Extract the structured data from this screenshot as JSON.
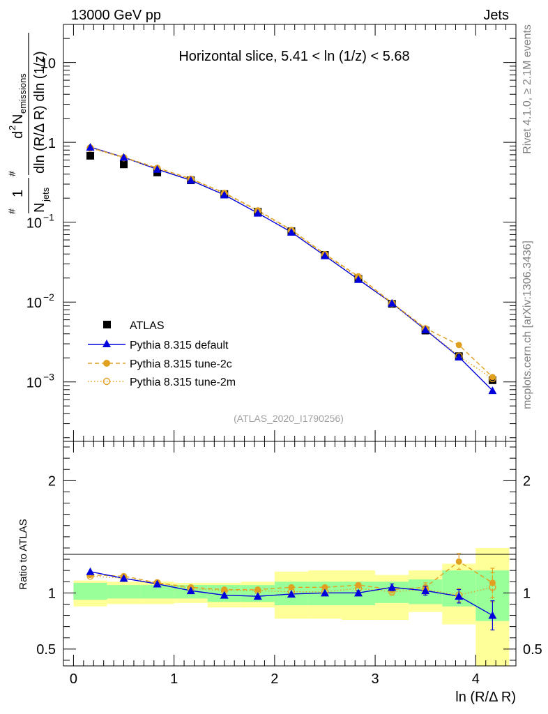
{
  "header": {
    "left": "13000 GeV pp",
    "right": "Jets"
  },
  "side": {
    "rivet": "Rivet 4.1.0, ≥ 2.1M events",
    "mcplots": "mcplots.cern.ch [arXiv:1306.3436]"
  },
  "colors": {
    "atlas": "#000000",
    "default": "#0000dd",
    "tune2c": "#e0a020",
    "tune2m": "#e0a020",
    "band_green": "#99ff99",
    "band_yellow": "#ffff99"
  },
  "chart_data": [
    {
      "type": "scatter",
      "title": "Horizontal slice, 5.41 < ln (1/z) < 5.68",
      "analysis_tag": "(ATLAS_2020_I1790256)",
      "yscale": "log",
      "ylim": [
        0.00018,
        30
      ],
      "xlim": [
        -0.1,
        4.4
      ],
      "ylabel_parts": {
        "frac1_num": "1",
        "frac1_den": "N",
        "frac1_den_sub": "jets",
        "frac2_num": "d",
        "frac2_num_sup": "2",
        "frac2_num_main": "N",
        "frac2_num_sub": "emissions",
        "frac2_den": "dln (R/Δ R) dln (1/z)",
        "hash": "#"
      },
      "y_ticks": [
        {
          "v": 10,
          "label": "10"
        },
        {
          "v": 1,
          "label": "1"
        },
        {
          "v": 0.1,
          "label": "10",
          "exp": "−1"
        },
        {
          "v": 0.01,
          "label": "10",
          "exp": "−2"
        },
        {
          "v": 0.001,
          "label": "10",
          "exp": "−3"
        }
      ],
      "x": [
        0.167,
        0.5,
        0.833,
        1.167,
        1.5,
        1.833,
        2.167,
        2.5,
        2.833,
        3.167,
        3.5,
        3.833,
        4.167
      ],
      "series": [
        {
          "name": "ATLAS",
          "marker": "square",
          "values": [
            0.68,
            0.53,
            0.42,
            0.335,
            0.225,
            0.135,
            0.077,
            0.039,
            0.0195,
            0.0095,
            0.0044,
            0.0021,
            0.00105
          ]
        },
        {
          "name": "Pythia 8.315 default",
          "marker": "triangle",
          "line": "solid",
          "values": [
            0.87,
            0.65,
            0.46,
            0.335,
            0.22,
            0.13,
            0.075,
            0.038,
            0.0192,
            0.0097,
            0.0045,
            0.00205,
            0.00078
          ]
        },
        {
          "name": "Pythia 8.315 tune-2c",
          "marker": "circle",
          "line": "dashed",
          "values": [
            0.86,
            0.65,
            0.48,
            0.35,
            0.233,
            0.141,
            0.08,
            0.04,
            0.021,
            0.0098,
            0.0047,
            0.0029,
            0.00115
          ]
        },
        {
          "name": "Pythia 8.315 tune-2m",
          "marker": "open-circle",
          "line": "dotted",
          "values": [
            0.85,
            0.64,
            0.47,
            0.345,
            0.228,
            0.138,
            0.078,
            0.039,
            0.0203,
            0.0096,
            0.0046,
            0.0021,
            0.0011
          ]
        }
      ]
    },
    {
      "type": "line",
      "ylabel": "Ratio to ATLAS",
      "xlabel": "ln (R/Δ R)",
      "ylim": [
        0.35,
        2.35
      ],
      "xlim": [
        -0.1,
        4.4
      ],
      "x_ticks": [
        0,
        1,
        2,
        3,
        4
      ],
      "y_ticks_left": [
        {
          "v": 2,
          "label": "2"
        },
        {
          "v": 1,
          "label": "1"
        },
        {
          "v": 0.5,
          "label": "0.5"
        }
      ],
      "y_ticks_right": [
        {
          "v": 2,
          "label": "2"
        },
        {
          "v": 1,
          "label": "1"
        },
        {
          "v": 0.5,
          "label": "0.5"
        }
      ],
      "bins": [
        [
          0,
          0.333
        ],
        [
          0.333,
          0.667
        ],
        [
          0.667,
          1.0
        ],
        [
          1.0,
          1.333
        ],
        [
          1.333,
          1.667
        ],
        [
          1.667,
          2.0
        ],
        [
          2.0,
          2.333
        ],
        [
          2.333,
          2.667
        ],
        [
          2.667,
          3.0
        ],
        [
          3.0,
          3.333
        ],
        [
          3.333,
          3.667
        ],
        [
          3.667,
          4.0
        ],
        [
          4.0,
          4.333
        ]
      ],
      "band_green": [
        [
          0.94,
          1.09
        ],
        [
          0.95,
          1.07
        ],
        [
          0.95,
          1.07
        ],
        [
          0.95,
          1.07
        ],
        [
          0.92,
          1.07
        ],
        [
          0.92,
          1.07
        ],
        [
          0.89,
          1.1
        ],
        [
          0.89,
          1.1
        ],
        [
          0.89,
          1.1
        ],
        [
          0.91,
          1.1
        ],
        [
          0.9,
          1.12
        ],
        [
          0.88,
          1.2
        ],
        [
          0.75,
          1.2
        ]
      ],
      "band_yellow": [
        [
          0.88,
          1.11
        ],
        [
          0.9,
          1.1
        ],
        [
          0.9,
          1.1
        ],
        [
          0.91,
          1.09
        ],
        [
          0.87,
          1.09
        ],
        [
          0.87,
          1.1
        ],
        [
          0.77,
          1.19
        ],
        [
          0.77,
          1.2
        ],
        [
          0.76,
          1.2
        ],
        [
          0.76,
          1.16
        ],
        [
          0.83,
          1.2
        ],
        [
          0.72,
          1.26
        ],
        [
          0.35,
          1.4
        ]
      ],
      "series": [
        {
          "name": "Pythia 8.315 default",
          "values": [
            1.19,
            1.13,
            1.08,
            1.02,
            0.98,
            0.97,
            0.99,
            1.0,
            1.0,
            1.05,
            1.02,
            0.97,
            0.8
          ],
          "err": [
            0.01,
            0.01,
            0.01,
            0.01,
            0.01,
            0.01,
            0.01,
            0.01,
            0.02,
            0.03,
            0.04,
            0.06,
            0.13
          ]
        },
        {
          "name": "Pythia 8.315 tune-2c",
          "values": [
            1.16,
            1.15,
            1.09,
            1.05,
            1.03,
            1.03,
            1.05,
            1.05,
            1.07,
            1.03,
            1.05,
            1.28,
            1.09
          ],
          "err": [
            0.01,
            0.01,
            0.01,
            0.01,
            0.01,
            0.01,
            0.01,
            0.01,
            0.02,
            0.03,
            0.04,
            0.07,
            0.13
          ]
        },
        {
          "name": "Pythia 8.315 tune-2m",
          "values": [
            1.15,
            1.13,
            1.09,
            1.04,
            1.02,
            1.02,
            1.01,
            1.01,
            1.04,
            1.01,
            1.03,
            0.98,
            1.05
          ],
          "err": [
            0.01,
            0.01,
            0.01,
            0.01,
            0.01,
            0.01,
            0.01,
            0.01,
            0.02,
            0.03,
            0.04,
            0.06,
            0.13
          ]
        }
      ]
    }
  ]
}
